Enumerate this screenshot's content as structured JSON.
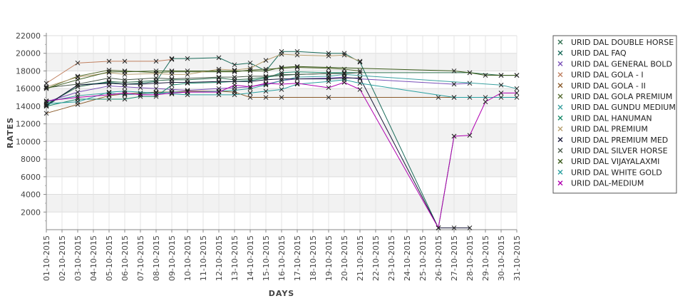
{
  "chart_data": {
    "type": "line",
    "title": "",
    "xlabel": "DAYS",
    "ylabel": "RATES",
    "ylim": [
      0,
      22000
    ],
    "yticks": [
      2000,
      4000,
      6000,
      8000,
      10000,
      12000,
      14000,
      16000,
      18000,
      20000,
      22000
    ],
    "grid": true,
    "legend_position": "right",
    "categories": [
      "01-10-2015",
      "02-10-2015",
      "03-10-2015",
      "04-10-2015",
      "05-10-2015",
      "06-10-2015",
      "07-10-2015",
      "08-10-2015",
      "09-10-2015",
      "10-10-2015",
      "11-10-2015",
      "12-10-2015",
      "13-10-2015",
      "14-10-2015",
      "15-10-2015",
      "16-10-2015",
      "17-10-2015",
      "18-10-2015",
      "19-10-2015",
      "20-10-2015",
      "21-10-2015",
      "22-10-2015",
      "23-10-2015",
      "24-10-2015",
      "25-10-2015",
      "26-10-2015",
      "27-10-2015",
      "28-10-2015",
      "29-10-2015",
      "30-10-2015",
      "31-10-2015"
    ],
    "series": [
      {
        "name": "URID DAL DOUBLE HORSE",
        "color": "#2f6f4f",
        "values": [
          14200,
          null,
          16200,
          null,
          16800,
          16700,
          16800,
          16900,
          17000,
          17000,
          null,
          17200,
          17000,
          17100,
          17300,
          17500,
          17600,
          null,
          17700,
          17800,
          17800,
          null,
          null,
          null,
          null,
          null,
          null,
          17800,
          null,
          17500,
          17500
        ]
      },
      {
        "name": "URID DAL FAQ",
        "color": "#1a6b5a",
        "values": [
          14000,
          null,
          16400,
          null,
          16700,
          16500,
          16600,
          16800,
          19400,
          19400,
          null,
          19500,
          18700,
          18900,
          18000,
          20200,
          20200,
          null,
          20000,
          20000,
          19000,
          null,
          null,
          null,
          null,
          200,
          10600,
          null,
          null,
          null,
          null
        ]
      },
      {
        "name": "URID DAL GENERAL BOLD",
        "color": "#7a50b8",
        "values": [
          14500,
          null,
          15600,
          null,
          16300,
          16200,
          16100,
          16000,
          15900,
          15800,
          null,
          16000,
          16100,
          16200,
          16500,
          16900,
          17100,
          null,
          17200,
          17300,
          17100,
          null,
          null,
          null,
          null,
          null,
          16500,
          16600,
          null,
          null,
          null
        ]
      },
      {
        "name": "URID DAL GOLA - I",
        "color": "#c08060",
        "values": [
          16600,
          null,
          18900,
          null,
          19100,
          19100,
          null,
          19100,
          19300,
          null,
          null,
          null,
          null,
          null,
          null,
          null,
          null,
          null,
          null,
          null,
          null,
          null,
          null,
          null,
          null,
          null,
          null,
          null,
          null,
          null,
          null
        ]
      },
      {
        "name": "URID DAL GOLA - II",
        "color": "#8a5a2a",
        "values": [
          13200,
          null,
          14200,
          null,
          15200,
          15400,
          15500,
          15600,
          15600,
          15700,
          null,
          15700,
          15600,
          15000,
          15000,
          15000,
          null,
          null,
          15000,
          null,
          null,
          null,
          null,
          null,
          null,
          15000,
          15000,
          null,
          null,
          null,
          null
        ]
      },
      {
        "name": "URID DAL GOLA PREMIUM",
        "color": "#556b2f",
        "values": [
          16000,
          null,
          17400,
          null,
          18100,
          18000,
          null,
          17800,
          17900,
          null,
          null,
          17900,
          17900,
          18100,
          18200,
          18300,
          18400,
          null,
          18300,
          18200,
          18000,
          null,
          null,
          null,
          null,
          null,
          null,
          null,
          null,
          null,
          null
        ]
      },
      {
        "name": "URID DAL GUNDU MEDIUM",
        "color": "#3aa0a0",
        "values": [
          14500,
          null,
          15200,
          null,
          15500,
          15300,
          15400,
          15500,
          15600,
          15600,
          null,
          15700,
          15800,
          16000,
          16400,
          16900,
          17300,
          null,
          17400,
          17600,
          null,
          null,
          null,
          null,
          null,
          null,
          null,
          null,
          null,
          16400,
          16000
        ]
      },
      {
        "name": "URID DAL HANUMAN",
        "color": "#1a8a6a",
        "values": [
          14000,
          null,
          14800,
          null,
          14800,
          14800,
          15100,
          15100,
          16400,
          16600,
          null,
          16700,
          16800,
          16900,
          17200,
          17800,
          17900,
          null,
          17800,
          17800,
          17800,
          null,
          null,
          null,
          null,
          null,
          null,
          null,
          null,
          null,
          null
        ]
      },
      {
        "name": "URID DAL PREMIUM",
        "color": "#b8a070",
        "values": [
          16200,
          null,
          17300,
          null,
          17800,
          17600,
          null,
          17700,
          17600,
          17600,
          null,
          18200,
          18100,
          18300,
          19200,
          19900,
          19800,
          null,
          19700,
          19800,
          19100,
          null,
          null,
          null,
          null,
          null,
          null,
          null,
          null,
          null,
          null
        ]
      },
      {
        "name": "URID DAL PREMIUM MED",
        "color": "#1a1a3a",
        "values": [
          14100,
          null,
          16400,
          null,
          16600,
          16500,
          16500,
          16600,
          16700,
          16700,
          null,
          16800,
          16800,
          16800,
          17000,
          17100,
          17100,
          null,
          17100,
          17200,
          17200,
          null,
          null,
          null,
          null,
          200,
          200,
          200,
          null,
          null,
          null
        ]
      },
      {
        "name": "URID DAL SILVER HORSE",
        "color": "#4a5a4a",
        "values": [
          16100,
          null,
          16500,
          null,
          17200,
          17000,
          null,
          17200,
          17100,
          null,
          null,
          17300,
          17300,
          17400,
          17400,
          17600,
          17600,
          null,
          17700,
          17700,
          17800,
          null,
          null,
          null,
          null,
          null,
          null,
          null,
          null,
          null,
          null
        ]
      },
      {
        "name": "URID DAL VIJAYALAXMI",
        "color": "#3a5a1a",
        "values": [
          16000,
          null,
          17000,
          null,
          17900,
          17900,
          null,
          18000,
          18000,
          18000,
          null,
          18000,
          18000,
          18000,
          18000,
          18400,
          18500,
          null,
          null,
          null,
          null,
          null,
          null,
          null,
          null,
          null,
          18000,
          17800,
          17500,
          17500,
          17500
        ]
      },
      {
        "name": "URID DAL WHITE GOLD",
        "color": "#2aa0a0",
        "values": [
          14300,
          null,
          14500,
          null,
          15600,
          15700,
          null,
          15500,
          15400,
          15300,
          null,
          15300,
          15300,
          15500,
          15700,
          15900,
          16500,
          null,
          16800,
          17000,
          16600,
          null,
          null,
          null,
          null,
          null,
          15000,
          15000,
          15000,
          15000,
          15000
        ]
      },
      {
        "name": "URID DAL-MEDIUM",
        "color": "#b000b0",
        "values": [
          14600,
          null,
          15000,
          null,
          15300,
          15500,
          15300,
          15300,
          15500,
          15600,
          null,
          15600,
          16400,
          16200,
          16600,
          16500,
          16600,
          null,
          16100,
          16700,
          15900,
          null,
          null,
          null,
          null,
          200,
          10600,
          10700,
          14500,
          15500,
          15500
        ]
      }
    ]
  }
}
